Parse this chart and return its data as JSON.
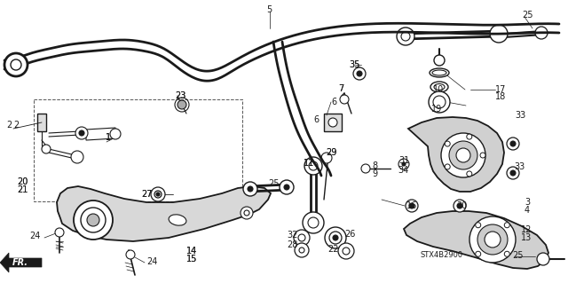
{
  "background_color": "#ffffff",
  "line_color": "#1a1a1a",
  "text_color": "#1a1a1a",
  "fig_width": 6.4,
  "fig_height": 3.19,
  "dpi": 100,
  "labels": [
    [
      304,
      11,
      "5"
    ],
    [
      588,
      17,
      "25"
    ],
    [
      393,
      73,
      "35"
    ],
    [
      15,
      141,
      "2"
    ],
    [
      197,
      108,
      "23"
    ],
    [
      373,
      115,
      "6"
    ],
    [
      381,
      100,
      "7"
    ],
    [
      488,
      101,
      "10"
    ],
    [
      558,
      101,
      "17"
    ],
    [
      558,
      109,
      "18"
    ],
    [
      486,
      123,
      "19"
    ],
    [
      580,
      130,
      "33"
    ],
    [
      119,
      155,
      "1"
    ],
    [
      367,
      172,
      "29"
    ],
    [
      449,
      181,
      "31"
    ],
    [
      448,
      192,
      "34"
    ],
    [
      419,
      187,
      "8"
    ],
    [
      419,
      196,
      "9"
    ],
    [
      19,
      205,
      "20"
    ],
    [
      19,
      214,
      "21"
    ],
    [
      302,
      207,
      "25"
    ],
    [
      342,
      184,
      "11"
    ],
    [
      172,
      219,
      "27"
    ],
    [
      579,
      188,
      "33"
    ],
    [
      591,
      228,
      "3"
    ],
    [
      591,
      237,
      "4"
    ],
    [
      458,
      232,
      "16"
    ],
    [
      514,
      232,
      "30"
    ],
    [
      587,
      259,
      "12"
    ],
    [
      587,
      268,
      "13"
    ],
    [
      210,
      283,
      "14"
    ],
    [
      210,
      292,
      "15"
    ],
    [
      33,
      266,
      "24"
    ],
    [
      165,
      295,
      "24"
    ],
    [
      323,
      276,
      "28"
    ],
    [
      325,
      265,
      "32"
    ],
    [
      369,
      281,
      "22"
    ],
    [
      388,
      264,
      "26"
    ],
    [
      577,
      288,
      "25"
    ],
    [
      474,
      288,
      "STX4B2900"
    ]
  ]
}
